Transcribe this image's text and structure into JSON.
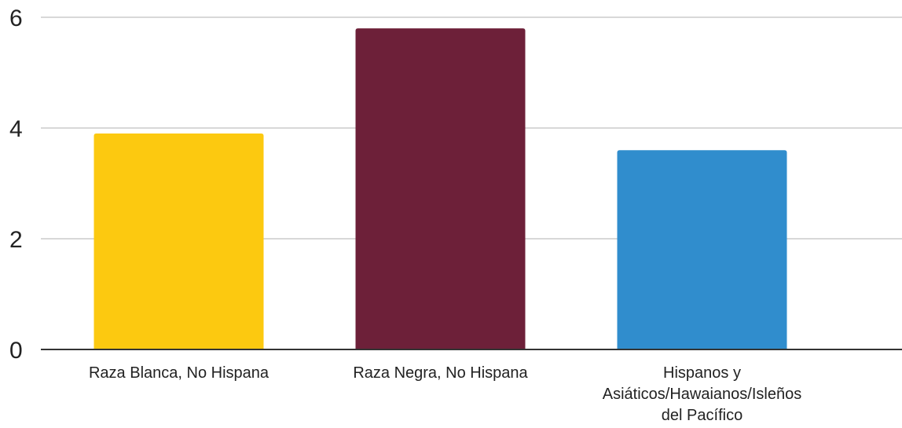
{
  "chart_data": {
    "type": "bar",
    "categories": [
      "Raza Blanca, No Hispana",
      "Raza Negra, No Hispana",
      "Hispanos y Asiáticos/Hawaianos/Isleños del Pacífico"
    ],
    "category_lines": [
      [
        "Raza Blanca, No Hispana"
      ],
      [
        "Raza Negra, No Hispana"
      ],
      [
        "Hispanos y",
        "Asiáticos/Hawaianos/Isleños",
        "del Pacífico"
      ]
    ],
    "values": [
      3.9,
      5.8,
      3.6
    ],
    "colors": [
      "#FCC910",
      "#6D2039",
      "#308DCD"
    ],
    "yticks": [
      0,
      2,
      4,
      6
    ],
    "ylim": [
      0,
      6
    ],
    "grid": true,
    "gridline_color": "#cccccc",
    "axis_color": "#333333",
    "title": "",
    "xlabel": "",
    "ylabel": ""
  }
}
